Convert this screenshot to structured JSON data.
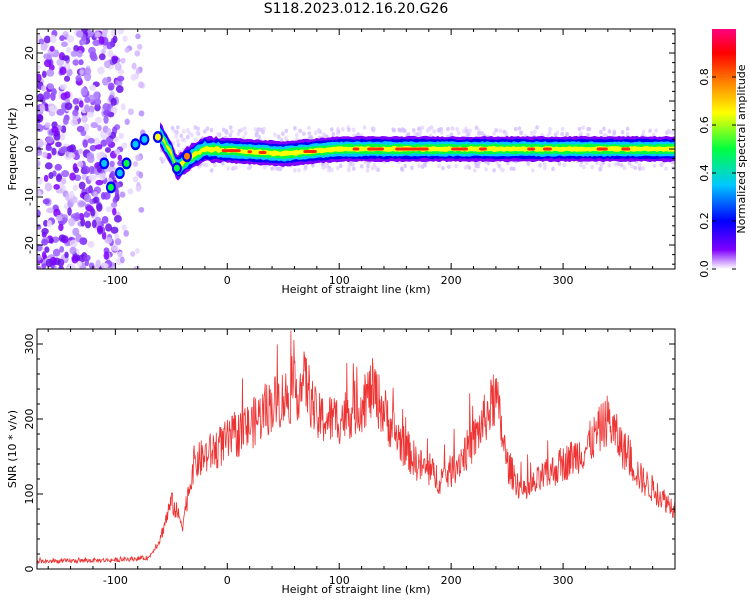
{
  "chart_data": [
    {
      "type": "heatmap",
      "title": "S118.2023.012.16.20.G26",
      "xlabel": "Height of straight line (km)",
      "ylabel": "Frequency (Hz)",
      "xlim": [
        -170,
        400
      ],
      "ylim": [
        -25,
        25
      ],
      "x_ticks": [
        "-100",
        "0",
        "100",
        "200",
        "300"
      ],
      "y_ticks": [
        "-20",
        "-10",
        "0",
        "10",
        "20"
      ],
      "colorbar": {
        "label": "Normalized spectral amplitude",
        "range": [
          0.0,
          1.0
        ],
        "ticks": [
          "0.0",
          "0.2",
          "0.4",
          "0.6",
          "0.8"
        ],
        "colors": [
          "#ffffff",
          "#7f00ff",
          "#0000ff",
          "#00c8ff",
          "#00ff40",
          "#ffff00",
          "#ff8000",
          "#ff0000",
          "#ff007f"
        ]
      },
      "ridge_center_hz": [
        {
          "x": -110,
          "y": -4
        },
        {
          "x": -100,
          "y": -6
        },
        {
          "x": -90,
          "y": -3
        },
        {
          "x": -80,
          "y": -1
        },
        {
          "x": -70,
          "y": 2
        },
        {
          "x": -60,
          "y": 3
        },
        {
          "x": -50,
          "y": -1
        },
        {
          "x": -45,
          "y": -4
        },
        {
          "x": -35,
          "y": -2
        },
        {
          "x": -20,
          "y": 0
        },
        {
          "x": 50,
          "y": -1
        },
        {
          "x": 100,
          "y": 0
        },
        {
          "x": 200,
          "y": 0
        },
        {
          "x": 300,
          "y": 0
        },
        {
          "x": 395,
          "y": 0
        }
      ],
      "noise_region_km": [
        -170,
        -75
      ]
    },
    {
      "type": "line",
      "xlabel": "Height of straight line (km)",
      "ylabel": "SNR (10 * v/v)",
      "xlim": [
        -170,
        400
      ],
      "ylim": [
        0,
        320
      ],
      "x_ticks": [
        "-100",
        "0",
        "100",
        "200",
        "300"
      ],
      "y_ticks": [
        "0",
        "100",
        "200",
        "300"
      ],
      "line_color": "#ee3333",
      "envelope": [
        {
          "x": -170,
          "y": 10
        },
        {
          "x": -100,
          "y": 12
        },
        {
          "x": -70,
          "y": 15
        },
        {
          "x": -60,
          "y": 40
        },
        {
          "x": -50,
          "y": 90
        },
        {
          "x": -40,
          "y": 60
        },
        {
          "x": -30,
          "y": 140
        },
        {
          "x": -20,
          "y": 150
        },
        {
          "x": 0,
          "y": 170
        },
        {
          "x": 20,
          "y": 190
        },
        {
          "x": 40,
          "y": 220
        },
        {
          "x": 60,
          "y": 235
        },
        {
          "x": 70,
          "y": 250
        },
        {
          "x": 80,
          "y": 200
        },
        {
          "x": 100,
          "y": 200
        },
        {
          "x": 120,
          "y": 220
        },
        {
          "x": 130,
          "y": 240
        },
        {
          "x": 150,
          "y": 180
        },
        {
          "x": 170,
          "y": 140
        },
        {
          "x": 190,
          "y": 120
        },
        {
          "x": 200,
          "y": 130
        },
        {
          "x": 220,
          "y": 170
        },
        {
          "x": 240,
          "y": 230
        },
        {
          "x": 250,
          "y": 140
        },
        {
          "x": 265,
          "y": 100
        },
        {
          "x": 280,
          "y": 120
        },
        {
          "x": 300,
          "y": 140
        },
        {
          "x": 320,
          "y": 160
        },
        {
          "x": 340,
          "y": 200
        },
        {
          "x": 350,
          "y": 170
        },
        {
          "x": 370,
          "y": 120
        },
        {
          "x": 385,
          "y": 100
        },
        {
          "x": 400,
          "y": 80
        }
      ]
    }
  ]
}
